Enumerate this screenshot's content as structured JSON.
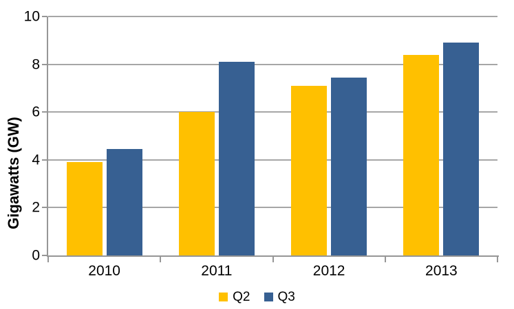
{
  "chart_data": {
    "type": "bar",
    "title": "",
    "xlabel": "",
    "ylabel": "Gigawatts (GW)",
    "categories": [
      "2010",
      "2011",
      "2012",
      "2013"
    ],
    "series": [
      {
        "name": "Q2",
        "color": "#FFC000",
        "values": [
          3.9,
          6.0,
          7.1,
          8.4
        ]
      },
      {
        "name": "Q3",
        "color": "#376092",
        "values": [
          4.45,
          8.1,
          7.45,
          8.9
        ]
      }
    ],
    "ylim": [
      0,
      10
    ],
    "yticks": [
      0,
      2,
      4,
      6,
      8,
      10
    ],
    "grid": true,
    "legend_position": "bottom",
    "colors": {
      "gridline": "#A6A6A6",
      "axis": "#969696",
      "text": "#000000",
      "background": "#FFFFFF"
    }
  }
}
